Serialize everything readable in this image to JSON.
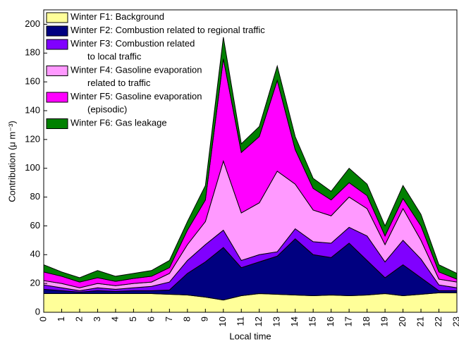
{
  "chart_data": {
    "type": "stacked_area",
    "x_label": "Local time",
    "y_label": "Contribution (μ m⁻³)",
    "x": [
      0,
      1,
      2,
      3,
      4,
      5,
      6,
      7,
      8,
      9,
      10,
      11,
      12,
      13,
      14,
      15,
      16,
      17,
      18,
      19,
      20,
      21,
      22,
      23
    ],
    "xlim": [
      0,
      23
    ],
    "xticks": [
      0,
      1,
      2,
      3,
      4,
      5,
      6,
      7,
      8,
      9,
      10,
      11,
      12,
      13,
      14,
      15,
      16,
      17,
      18,
      19,
      20,
      21,
      22,
      23
    ],
    "ylim": [
      0,
      210
    ],
    "yticks": [
      0,
      20,
      40,
      60,
      80,
      100,
      120,
      140,
      160,
      180,
      200
    ],
    "legend": "upper-left",
    "series": [
      {
        "name": "Winter F1: Background",
        "color": "#ffff99",
        "values": [
          13,
          13,
          13,
          13,
          13,
          13,
          13,
          12.5,
          12,
          10.5,
          8.5,
          11.5,
          13,
          12.5,
          12,
          11.5,
          12,
          11.5,
          12,
          13,
          11.5,
          12.5,
          13.5,
          13.5
        ]
      },
      {
        "name": "Winter F2: Combustion related to regional traffic",
        "color": "#000080",
        "values": [
          3,
          2,
          1,
          2,
          1.5,
          2,
          2,
          3,
          15,
          24.5,
          36.5,
          19.5,
          22,
          26.5,
          39,
          28.5,
          26,
          36.5,
          24,
          11,
          21.5,
          11.5,
          1.5,
          1.5
        ]
      },
      {
        "name": "Winter F3: Combustion related\nto local traffic",
        "color": "#8000ff",
        "values": [
          3,
          2,
          1,
          2,
          1.5,
          2,
          3,
          5.5,
          9,
          12,
          12,
          5,
          5,
          3,
          7,
          9,
          10,
          11,
          17,
          11,
          17,
          13,
          4,
          2
        ]
      },
      {
        "name": "Winter F4: Gasoline evaporation\nrelated to traffic",
        "color": "#ff99ff",
        "values": [
          3,
          3,
          2,
          3,
          2.5,
          3,
          3,
          6,
          11,
          16,
          48,
          33,
          36,
          56,
          31,
          22,
          19,
          21,
          19,
          12,
          22,
          13,
          4,
          4
        ]
      },
      {
        "name": "Winter F5: Gasoline evaporation\n(episodic)",
        "color": "#ff00ff",
        "values": [
          6,
          5,
          4,
          4,
          3,
          3.5,
          4,
          4,
          10,
          15,
          71,
          42,
          46,
          63,
          24,
          15,
          11,
          10,
          9,
          6,
          7,
          10,
          5,
          2
        ]
      },
      {
        "name": "Winter F6: Gas leakage",
        "color": "#008000",
        "values": [
          5,
          3,
          3,
          5,
          3.5,
          3.5,
          4,
          5,
          6,
          10,
          15,
          6,
          7,
          10,
          9,
          7,
          6,
          10,
          8,
          7,
          9,
          8,
          5,
          4
        ]
      }
    ]
  }
}
